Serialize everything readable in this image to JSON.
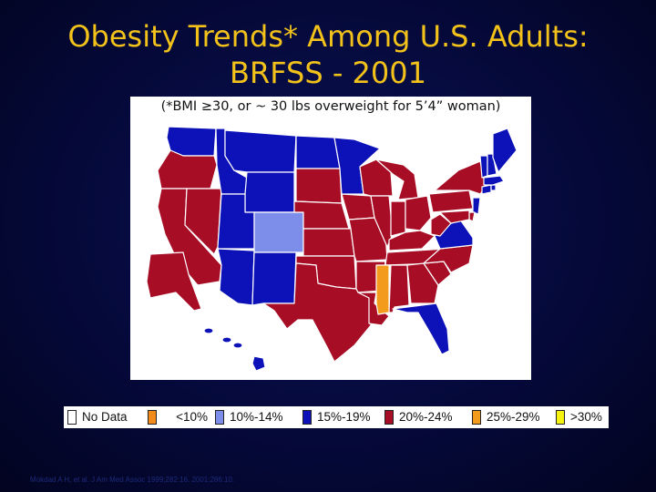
{
  "title_line1": "Obesity Trends* Among U.S. Adults:",
  "title_line2": "BRFSS - 2001",
  "subtitle": "(*BMI ≥30, or ~ 30 lbs overweight for 5’4” woman)",
  "colors": {
    "title": "#f2c21b",
    "no_data": "#ffffff",
    "lt10": "#f28a1c",
    "10_14": "#7d8dea",
    "15_19": "#0c11b8",
    "20_24": "#a80d26",
    "25_29": "#f29b1c",
    "gte30": "#f4f20e"
  },
  "legend": [
    {
      "label": "No Data",
      "color_key": "no_data"
    },
    {
      "label": "<10%",
      "color_key": "lt10"
    },
    {
      "label": "10%-14%",
      "color_key": "10_14"
    },
    {
      "label": "15%-19%",
      "color_key": "15_19"
    },
    {
      "label": "20%-24%",
      "color_key": "20_24"
    },
    {
      "label": "25%-29%",
      "color_key": "25_29"
    },
    {
      "label": ">30%",
      "color_key": "gte30"
    }
  ],
  "state_categories": {
    "WA": "15_19",
    "OR": "20_24",
    "CA": "20_24",
    "NV": "20_24",
    "ID": "15_19",
    "MT": "15_19",
    "WY": "15_19",
    "UT": "15_19",
    "AZ": "15_19",
    "CO": "10_14",
    "NM": "15_19",
    "ND": "15_19",
    "SD": "20_24",
    "NE": "20_24",
    "KS": "20_24",
    "OK": "20_24",
    "TX": "20_24",
    "MN": "15_19",
    "IA": "20_24",
    "MO": "20_24",
    "AR": "20_24",
    "LA": "20_24",
    "WI": "20_24",
    "IL": "20_24",
    "MI": "20_24",
    "IN": "20_24",
    "OH": "20_24",
    "KY": "20_24",
    "TN": "20_24",
    "MS": "25_29",
    "AL": "20_24",
    "GA": "20_24",
    "FL": "15_19",
    "SC": "20_24",
    "NC": "20_24",
    "VA": "15_19",
    "WV": "20_24",
    "PA": "20_24",
    "NY": "20_24",
    "ME": "15_19",
    "NH": "15_19",
    "VT": "15_19",
    "MA": "15_19",
    "CT": "15_19",
    "RI": "15_19",
    "NJ": "15_19",
    "DE": "20_24",
    "MD": "20_24",
    "AK": "20_24",
    "HI": "15_19"
  },
  "source": "Mokdad A H, et al. J Am Med Assoc 1999;282:16, 2001;286:10."
}
